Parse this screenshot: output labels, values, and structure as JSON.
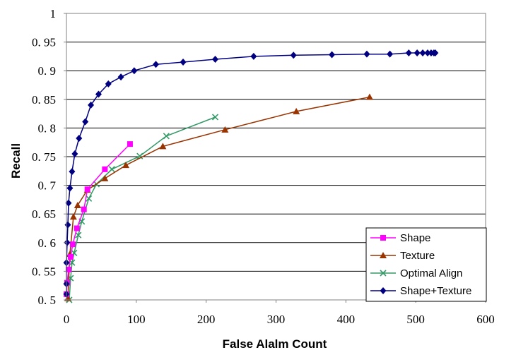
{
  "chart_data": {
    "type": "line",
    "title": "",
    "xlabel": "False Alalm Count",
    "ylabel": "Recall",
    "xlim": [
      0,
      600
    ],
    "ylim": [
      0.5,
      1
    ],
    "xticks": [
      0,
      100,
      200,
      300,
      400,
      500,
      600
    ],
    "xtick_labels": [
      "0",
      "100",
      "200",
      "300",
      "400",
      "500",
      "600"
    ],
    "yticks": [
      0.5,
      0.55,
      0.6,
      0.65,
      0.7,
      0.75,
      0.8,
      0.85,
      0.9,
      0.95,
      1
    ],
    "ytick_labels": [
      "0. 5",
      "0. 55",
      "0. 6",
      "0. 65",
      "0. 7",
      "0. 75",
      "0. 8",
      "0. 85",
      "0. 9",
      "0. 95",
      "1"
    ],
    "grid": "horizontal",
    "legend_position": "bottom-right",
    "series": [
      {
        "name": "Shape",
        "color": "#ff00ff",
        "marker": "square",
        "x": [
          0,
          1,
          3,
          6,
          9,
          15,
          25,
          30,
          55,
          91
        ],
        "y": [
          0.51,
          0.53,
          0.553,
          0.575,
          0.597,
          0.625,
          0.658,
          0.693,
          0.728,
          0.772
        ]
      },
      {
        "name": "Texture",
        "color": "#993300",
        "marker": "triangle",
        "x": [
          2,
          5,
          10,
          16,
          30,
          55,
          85,
          138,
          227,
          329,
          434
        ],
        "y": [
          0.503,
          0.58,
          0.645,
          0.665,
          0.692,
          0.712,
          0.735,
          0.768,
          0.797,
          0.829,
          0.854
        ]
      },
      {
        "name": "Optimal Align",
        "color": "#339966",
        "marker": "x",
        "x": [
          4,
          6,
          8,
          11,
          17,
          22,
          32,
          43,
          65,
          105,
          143,
          213
        ],
        "y": [
          0.5,
          0.538,
          0.565,
          0.582,
          0.613,
          0.637,
          0.677,
          0.702,
          0.728,
          0.751,
          0.786,
          0.819
        ]
      },
      {
        "name": "Shape+Texture",
        "color": "#000080",
        "marker": "diamond",
        "x": [
          0,
          0,
          0,
          1,
          2,
          3,
          5,
          8,
          12,
          18,
          27,
          35,
          46,
          60,
          78,
          97,
          128,
          167,
          213,
          268,
          325,
          380,
          430,
          463,
          490,
          502,
          510,
          517,
          522,
          526,
          528
        ],
        "y": [
          0.51,
          0.528,
          0.565,
          0.6,
          0.631,
          0.669,
          0.695,
          0.724,
          0.755,
          0.782,
          0.811,
          0.84,
          0.859,
          0.877,
          0.889,
          0.9,
          0.911,
          0.915,
          0.92,
          0.925,
          0.927,
          0.928,
          0.929,
          0.929,
          0.931,
          0.931,
          0.931,
          0.931,
          0.931,
          0.931,
          0.931
        ]
      }
    ]
  }
}
